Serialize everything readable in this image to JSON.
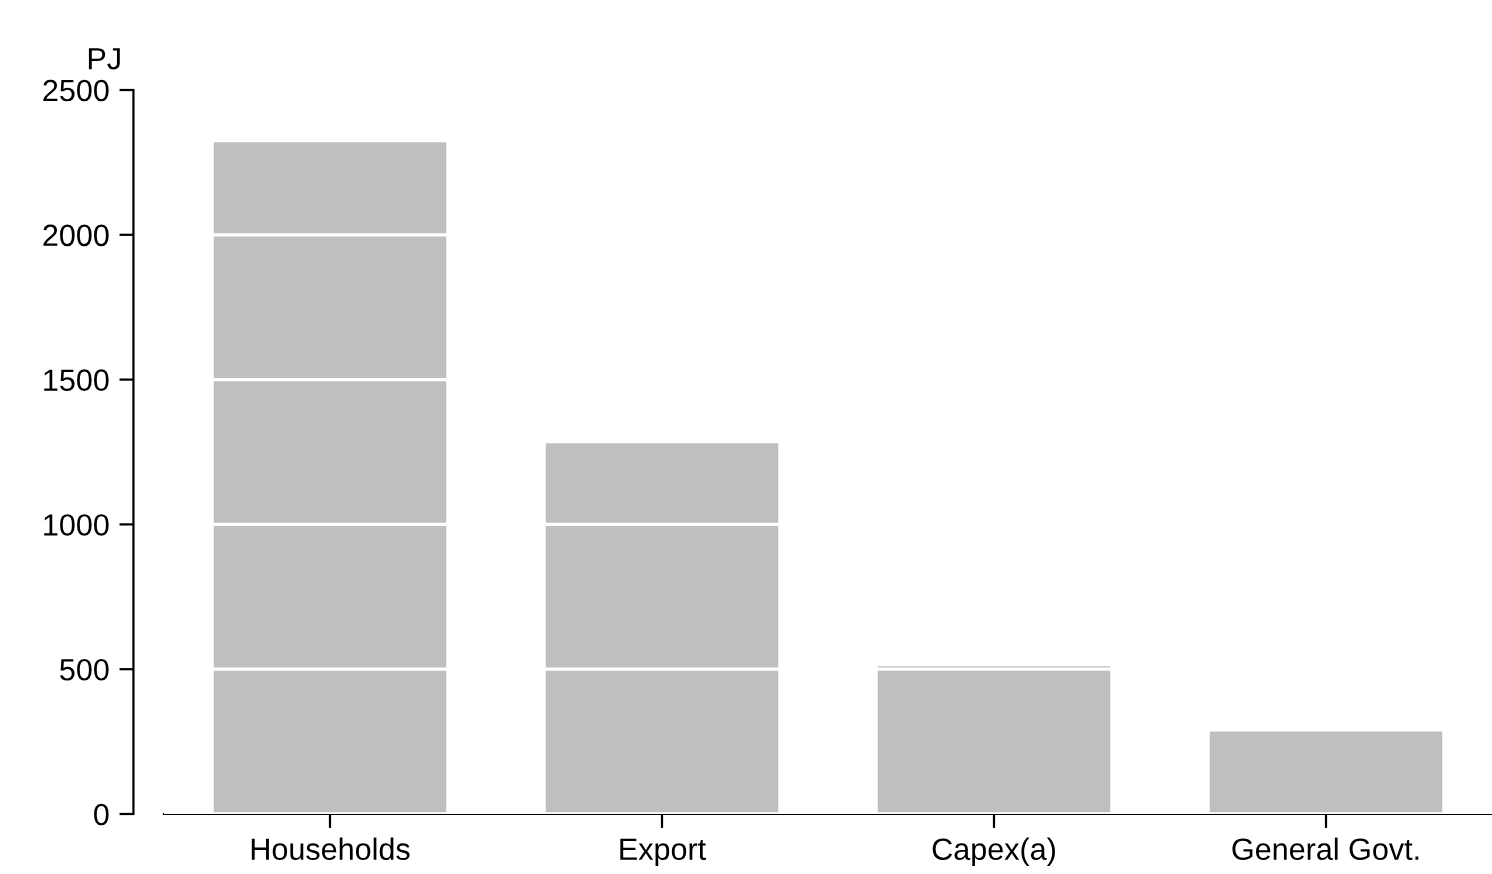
{
  "chart_data": {
    "type": "bar",
    "ylabel": "PJ",
    "categories": [
      "Households",
      "Export",
      "Capex(a)",
      "General Govt."
    ],
    "values": [
      2320,
      1280,
      510,
      285
    ],
    "color": "#bfbfbf",
    "ylim": [
      0,
      2500
    ],
    "yticks": [
      0,
      500,
      1000,
      1500,
      2000,
      2500
    ],
    "grid": "y"
  }
}
